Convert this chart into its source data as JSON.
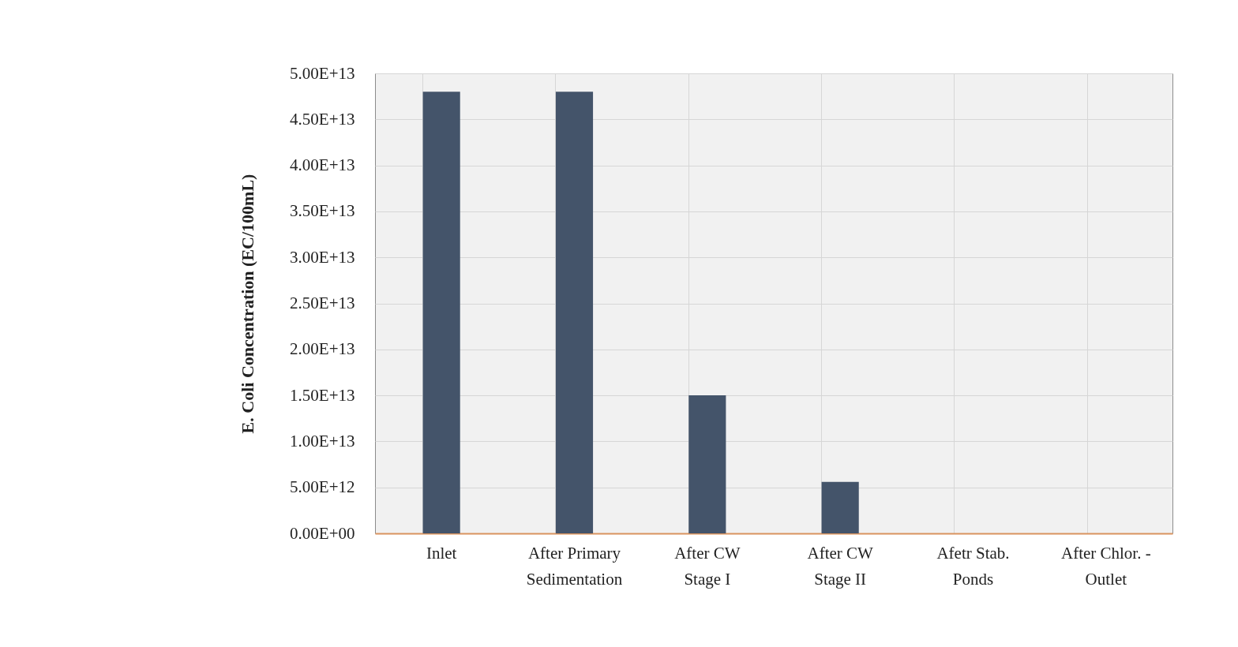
{
  "chart_data": {
    "type": "bar",
    "ylabel": "E. Coli Concentration (EC/100mL)",
    "categories": [
      "Inlet",
      "After Primary\nSedimentation",
      "After CW\nStage I",
      "After CW\nStage II",
      "Afetr Stab.\nPonds",
      "After Chlor. -\nOutlet"
    ],
    "values": [
      48000000000000.0,
      48000000000000.0,
      15000000000000.0,
      5600000000000.0,
      0,
      0
    ],
    "color": "#44546a",
    "ylim": [
      0,
      50000000000000.0
    ],
    "yticks": [
      {
        "value": 0,
        "label": "0.00E+00"
      },
      {
        "value": 5000000000000.0,
        "label": "5.00E+12"
      },
      {
        "value": 10000000000000.0,
        "label": "1.00E+13"
      },
      {
        "value": 15000000000000.0,
        "label": "1.50E+13"
      },
      {
        "value": 20000000000000.0,
        "label": "2.00E+13"
      },
      {
        "value": 25000000000000.0,
        "label": "2.50E+13"
      },
      {
        "value": 30000000000000.0,
        "label": "3.00E+13"
      },
      {
        "value": 35000000000000.0,
        "label": "3.50E+13"
      },
      {
        "value": 40000000000000.0,
        "label": "4.00E+13"
      },
      {
        "value": 45000000000000.0,
        "label": "4.50E+13"
      },
      {
        "value": 50000000000000.0,
        "label": "5.00E+13"
      }
    ],
    "grid": true
  }
}
